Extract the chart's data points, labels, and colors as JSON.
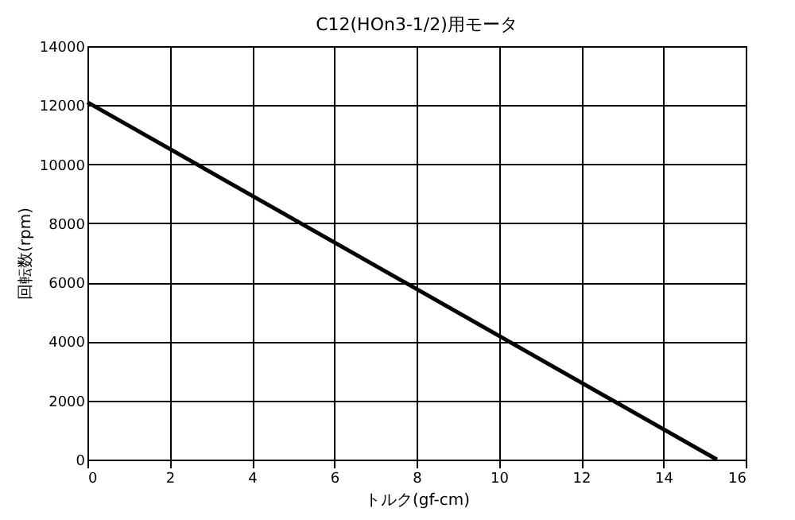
{
  "chart_data": {
    "type": "line",
    "title": "C12(HOn3-1/2)用モータ",
    "xlabel": "トルク(gf-cm)",
    "ylabel": "回転数(rpm)",
    "x": [
      0,
      15.3
    ],
    "series": [
      {
        "color": "#000000",
        "values": [
          12100,
          0
        ]
      }
    ],
    "xlim": [
      0,
      16
    ],
    "xticks": [
      0,
      2,
      4,
      6,
      8,
      10,
      12,
      14,
      16
    ],
    "ylim": [
      0,
      14000
    ],
    "yticks": [
      0,
      2000,
      4000,
      6000,
      8000,
      10000,
      12000,
      14000
    ],
    "grid": true,
    "marker": "none",
    "line_style": "solid"
  }
}
